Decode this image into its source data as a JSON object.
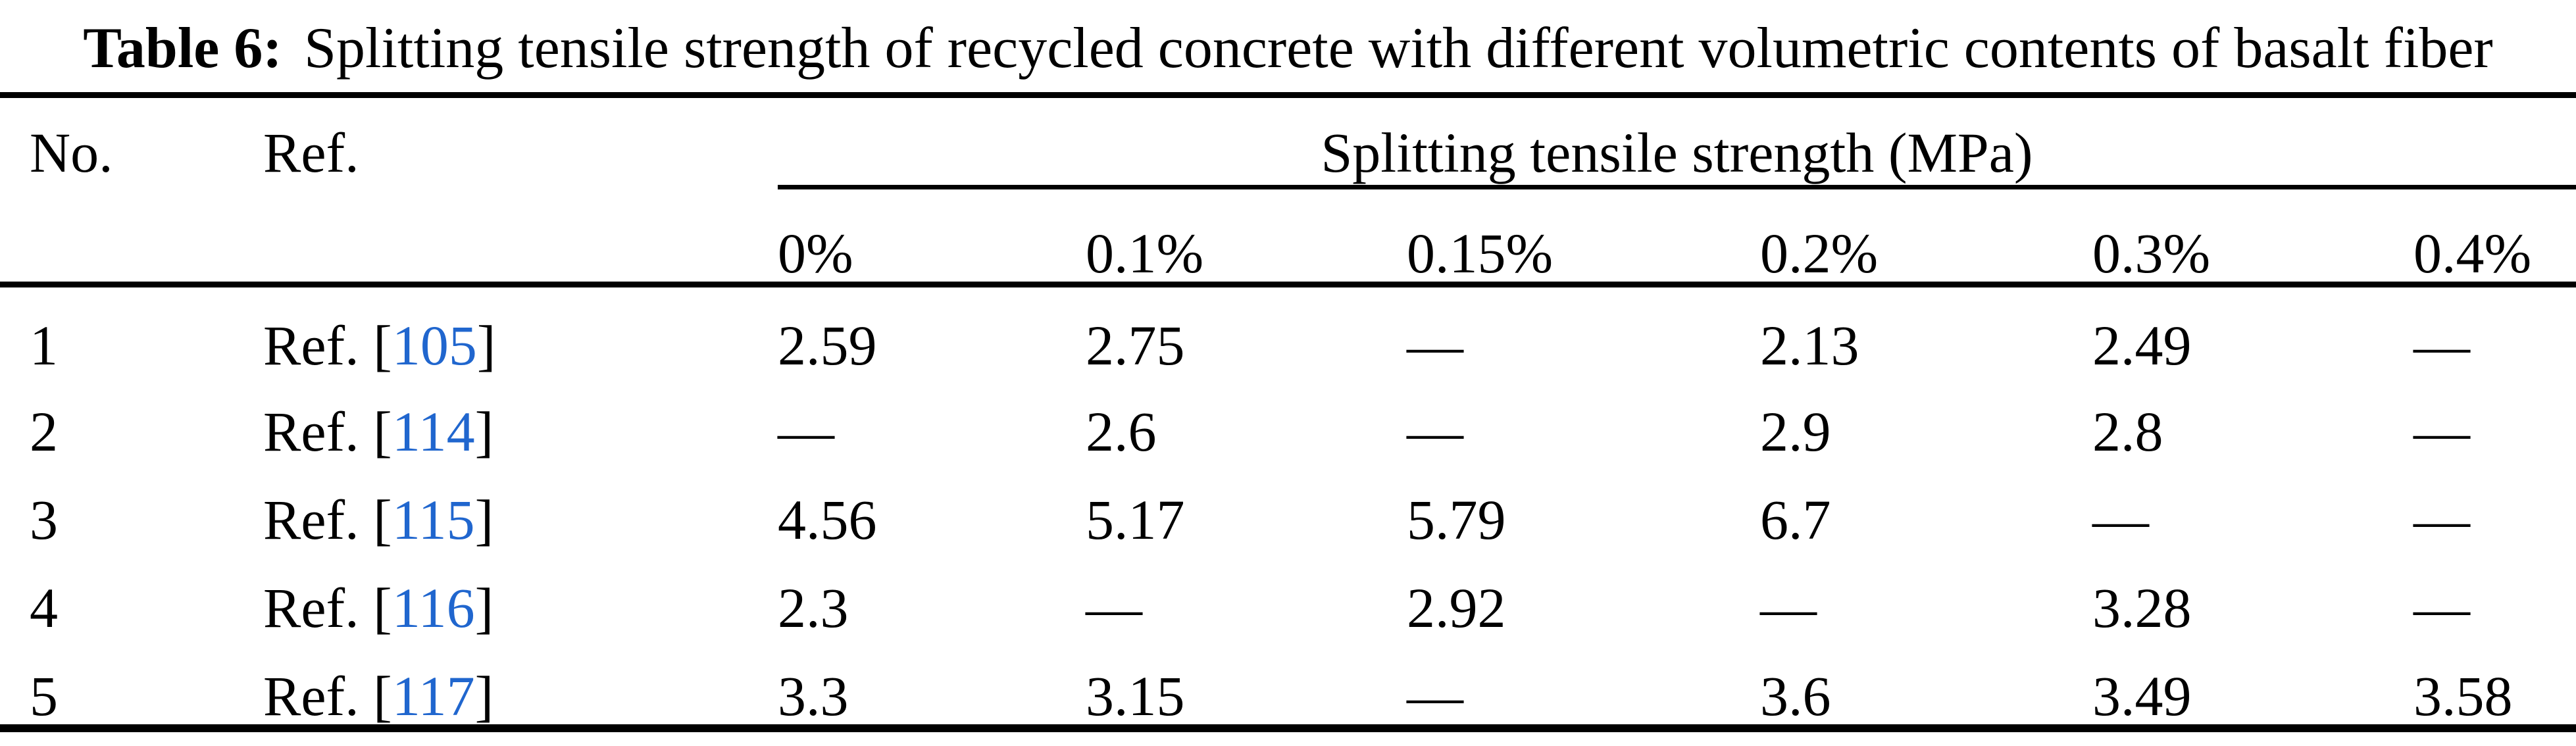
{
  "caption": {
    "label": "Table 6:",
    "text": "Splitting tensile strength of recycled concrete with different volumetric contents of basalt fiber"
  },
  "header": {
    "no": "No.",
    "ref": "Ref.",
    "group": "Splitting tensile strength (MPa)",
    "percent_cols": [
      "0%",
      "0.1%",
      "0.15%",
      "0.2%",
      "0.3%",
      "0.4%"
    ]
  },
  "rows": [
    {
      "no": "1",
      "ref_prefix": "Ref. [",
      "ref_num": "105",
      "ref_suffix": "]",
      "values": [
        "2.59",
        "2.75",
        "—",
        "2.13",
        "2.49",
        "—"
      ]
    },
    {
      "no": "2",
      "ref_prefix": "Ref. [",
      "ref_num": "114",
      "ref_suffix": "]",
      "values": [
        "—",
        "2.6",
        "—",
        "2.9",
        "2.8",
        "—"
      ]
    },
    {
      "no": "3",
      "ref_prefix": "Ref. [",
      "ref_num": "115",
      "ref_suffix": "]",
      "values": [
        "4.56",
        "5.17",
        "5.79",
        "6.7",
        "—",
        "—"
      ]
    },
    {
      "no": "4",
      "ref_prefix": "Ref. [",
      "ref_num": "116",
      "ref_suffix": "]",
      "values": [
        "2.3",
        "—",
        "2.92",
        "—",
        "3.28",
        "—"
      ]
    },
    {
      "no": "5",
      "ref_prefix": "Ref. [",
      "ref_num": "117",
      "ref_suffix": "]",
      "values": [
        "3.3",
        "3.15",
        "—",
        "3.6",
        "3.49",
        "3.58"
      ]
    }
  ],
  "colors": {
    "link": "#2066CE",
    "text": "#000000",
    "background": "#FFFFFF"
  }
}
